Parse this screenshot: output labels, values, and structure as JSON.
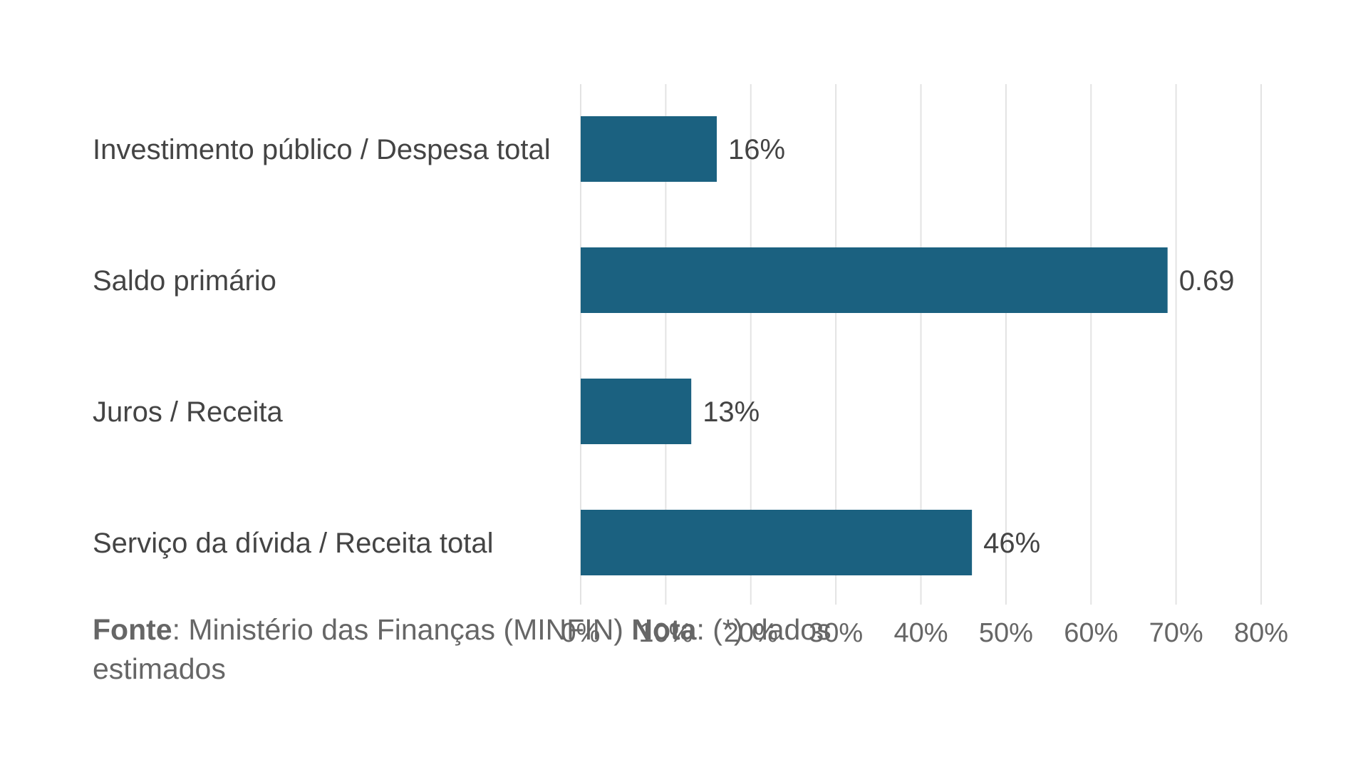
{
  "chart_data": {
    "type": "bar",
    "orientation": "horizontal",
    "categories": [
      "Investimento público / Despesa total",
      "Saldo primário",
      "Juros / Receita",
      "Serviço da dívida / Receita total"
    ],
    "values": [
      0.16,
      0.69,
      0.13,
      0.46
    ],
    "value_labels": [
      "16%",
      "0.69",
      "13%",
      "46%"
    ],
    "xlim": [
      0,
      0.8
    ],
    "xticks": [
      0,
      0.1,
      0.2,
      0.3,
      0.4,
      0.5,
      0.6,
      0.7,
      0.8
    ],
    "xtick_labels": [
      "0%",
      "10%",
      "20%",
      "30%",
      "40%",
      "50%",
      "60%",
      "70%",
      "80%"
    ],
    "grid": "vertical",
    "legend": "none",
    "bar_color": "#1b6180",
    "grid_color": "#e3e3e3",
    "text_color": "#444444",
    "title": "",
    "xlabel": "",
    "ylabel": ""
  },
  "footnote": {
    "source_label": "Fonte",
    "source_text": ": Ministério das Finanças (MINFIN) ",
    "note_label": "Nota",
    "note_text": ": (*) dados estimados"
  }
}
